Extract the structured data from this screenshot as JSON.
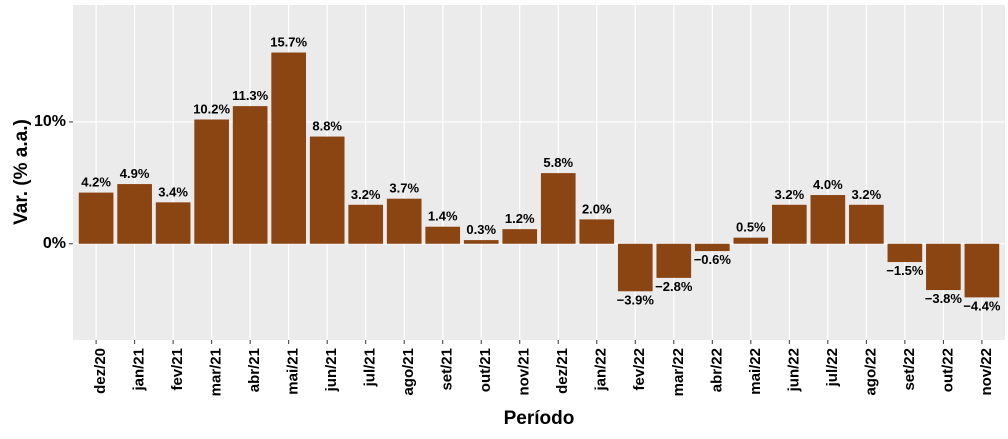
{
  "chart_data": {
    "type": "bar",
    "x_label": "Período",
    "y_label": "Var. (% a.a.)",
    "categories": [
      "dez/20",
      "jan/21",
      "fev/21",
      "mar/21",
      "abr/21",
      "mai/21",
      "jun/21",
      "jul/21",
      "ago/21",
      "set/21",
      "out/21",
      "nov/21",
      "dez/21",
      "jan/22",
      "fev/22",
      "mar/22",
      "abr/22",
      "mai/22",
      "jun/22",
      "jul/22",
      "ago/22",
      "set/22",
      "out/22",
      "nov/22"
    ],
    "values": [
      4.2,
      4.9,
      3.4,
      10.2,
      11.3,
      15.7,
      8.8,
      3.2,
      3.7,
      1.4,
      0.3,
      1.2,
      5.8,
      2.0,
      -3.9,
      -2.8,
      -0.6,
      0.5,
      3.2,
      4.0,
      3.2,
      -1.5,
      -3.8,
      -4.4
    ],
    "value_labels": [
      "4.2%",
      "4.9%",
      "3.4%",
      "10.2%",
      "11.3%",
      "15.7%",
      "8.8%",
      "3.2%",
      "3.7%",
      "1.4%",
      "0.3%",
      "1.2%",
      "5.8%",
      "2.0%",
      "−3.9%",
      "−2.8%",
      "−0.6%",
      "0.5%",
      "3.2%",
      "4.0%",
      "3.2%",
      "−1.5%",
      "−3.8%",
      "−4.4%"
    ],
    "color": "#8B4513",
    "ylim": [
      -7.9,
      19.6
    ],
    "yticks": [
      {
        "value": 0,
        "label": "0%"
      },
      {
        "value": 10,
        "label": "10%"
      }
    ],
    "grid": true
  }
}
